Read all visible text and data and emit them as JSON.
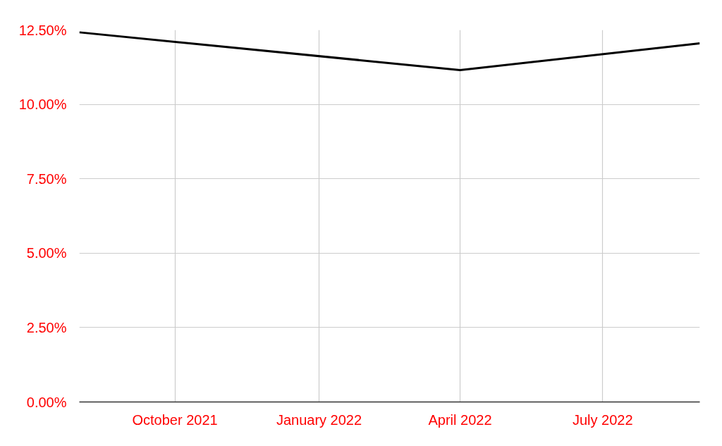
{
  "chart_data": {
    "type": "line",
    "x": [
      "2021-08-01",
      "2022-04-01",
      "2022-09-01"
    ],
    "series": [
      {
        "color": "#000000",
        "values": [
          12.42,
          11.15,
          12.05
        ]
      }
    ],
    "xlim": [
      "2021-08-01",
      "2022-09-01"
    ],
    "xticks": [
      {
        "value": "2021-10-01",
        "label": "October 2021"
      },
      {
        "value": "2022-01-01",
        "label": "January 2022"
      },
      {
        "value": "2022-04-01",
        "label": "April 2022"
      },
      {
        "value": "2022-07-01",
        "label": "July 2022"
      }
    ],
    "ylim": [
      0,
      12.5
    ],
    "yticks": [
      {
        "value": 0,
        "label": "0.00%"
      },
      {
        "value": 2.5,
        "label": "2.50%"
      },
      {
        "value": 5,
        "label": "5.00%"
      },
      {
        "value": 7.5,
        "label": "7.50%"
      },
      {
        "value": 10,
        "label": "10.00%"
      },
      {
        "value": 12.5,
        "label": "12.50%"
      }
    ],
    "grid": true
  }
}
